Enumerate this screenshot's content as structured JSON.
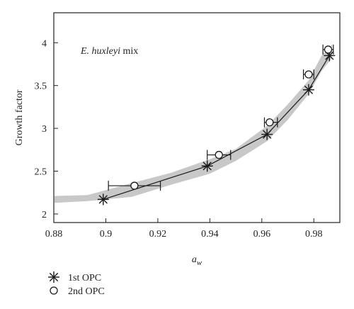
{
  "chart_data": {
    "type": "scatter",
    "annotation": {
      "species": "E. huxleyi",
      "suffix": " mix"
    },
    "xlabel": {
      "main": "a",
      "sub": "w"
    },
    "ylabel": "Growth factor",
    "xlim": [
      0.88,
      0.99
    ],
    "ylim": [
      1.9,
      4.35
    ],
    "x_ticks": [
      0.88,
      0.9,
      0.92,
      0.94,
      0.96,
      0.98
    ],
    "x_tick_labels": [
      "0.88",
      "0.9",
      "0.92",
      "0.94",
      "0.96",
      "0.98"
    ],
    "y_ticks": [
      2,
      2.5,
      3,
      3.5,
      4
    ],
    "y_tick_labels": [
      "2",
      "2.5",
      "3",
      "3.5",
      "4"
    ],
    "band": {
      "color": "#c8c8c8",
      "lower": [
        [
          0.875,
          2.13
        ],
        [
          0.893,
          2.15
        ],
        [
          0.91,
          2.2
        ],
        [
          0.925,
          2.34
        ],
        [
          0.94,
          2.47
        ],
        [
          0.95,
          2.62
        ],
        [
          0.962,
          2.85
        ],
        [
          0.97,
          3.1
        ],
        [
          0.978,
          3.4
        ],
        [
          0.983,
          3.67
        ],
        [
          0.987,
          3.82
        ]
      ],
      "upper": [
        [
          0.987,
          3.98
        ],
        [
          0.983,
          3.85
        ],
        [
          0.978,
          3.56
        ],
        [
          0.97,
          3.28
        ],
        [
          0.962,
          3.03
        ],
        [
          0.95,
          2.76
        ],
        [
          0.94,
          2.64
        ],
        [
          0.925,
          2.48
        ],
        [
          0.91,
          2.36
        ],
        [
          0.893,
          2.22
        ],
        [
          0.875,
          2.21
        ]
      ]
    },
    "series": [
      {
        "name": "1st OPC",
        "marker": "asterisk",
        "connected": true,
        "points": [
          {
            "x": 0.899,
            "y": 2.17
          },
          {
            "x": 0.939,
            "y": 2.56
          },
          {
            "x": 0.962,
            "y": 2.93
          },
          {
            "x": 0.978,
            "y": 3.45
          },
          {
            "x": 0.986,
            "y": 3.85
          }
        ]
      },
      {
        "name": "2nd OPC",
        "marker": "circle",
        "connected": false,
        "points": [
          {
            "x": 0.911,
            "y": 2.33,
            "xerr": [
              0.901,
              0.921
            ]
          },
          {
            "x": 0.9435,
            "y": 2.69,
            "xerr": [
              0.939,
              0.948
            ]
          },
          {
            "x": 0.963,
            "y": 3.07,
            "xerr": [
              0.961,
              0.966
            ]
          },
          {
            "x": 0.978,
            "y": 3.63,
            "xerr": [
              0.976,
              0.98
            ]
          },
          {
            "x": 0.9855,
            "y": 3.92,
            "xerr": [
              0.9835,
              0.9875
            ]
          }
        ]
      }
    ],
    "legend": {
      "placement": "bottom-left",
      "entries": [
        {
          "label": "1st OPC",
          "marker": "asterisk"
        },
        {
          "label": "2nd OPC",
          "marker": "circle"
        }
      ]
    },
    "grid": false
  }
}
